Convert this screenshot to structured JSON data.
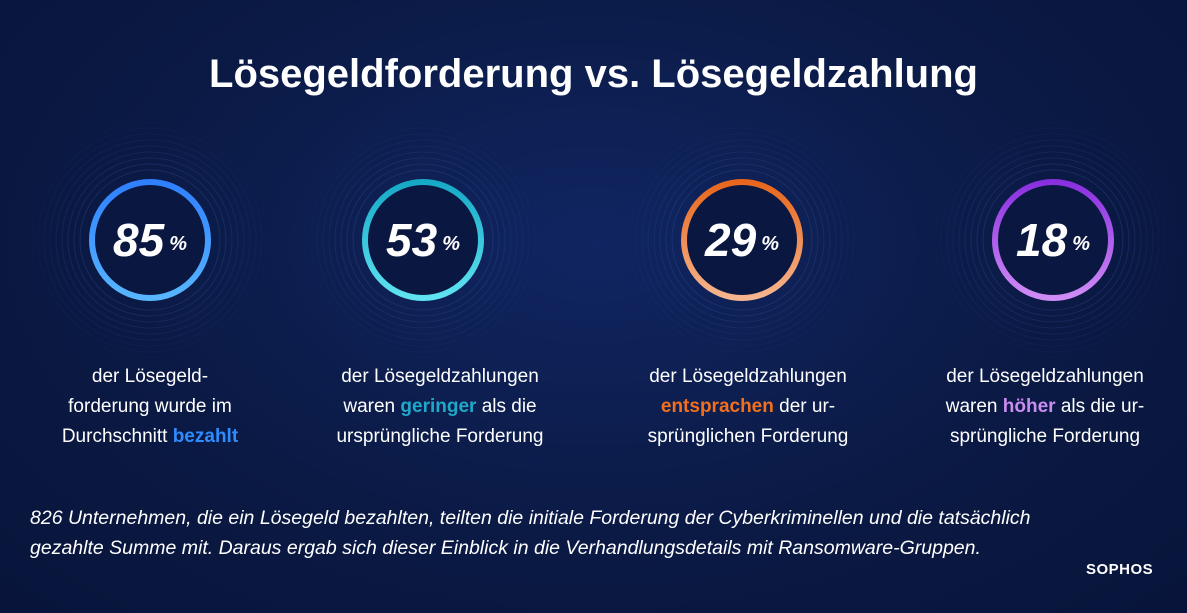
{
  "title": "Lösegeldforderung vs. Lösegeldzahlung",
  "stats": [
    {
      "value": "85",
      "unit": "%",
      "fraction": 0.85,
      "ring_colors": [
        "#2f7fff",
        "#57b6ff"
      ],
      "highlight_color": "#2f8cff",
      "caption_lines": [
        {
          "pre": "der Lösegeld-",
          "hl": "",
          "post": ""
        },
        {
          "pre": "forderung wurde im",
          "hl": "",
          "post": ""
        },
        {
          "pre": "Durchschnitt ",
          "hl": "bezahlt",
          "post": ""
        }
      ]
    },
    {
      "value": "53",
      "unit": "%",
      "fraction": 0.53,
      "ring_colors": [
        "#16a9c6",
        "#5fe3f2"
      ],
      "highlight_color": "#1fa8c9",
      "caption_lines": [
        {
          "pre": "der Lösegeldzahlungen",
          "hl": "",
          "post": ""
        },
        {
          "pre": "waren ",
          "hl": "geringer",
          "post": " als die"
        },
        {
          "pre": "ursprüngliche Forderung",
          "hl": "",
          "post": ""
        }
      ]
    },
    {
      "value": "29",
      "unit": "%",
      "fraction": 0.29,
      "ring_colors": [
        "#e8661c",
        "#f5b58e"
      ],
      "highlight_color": "#f0701f",
      "caption_lines": [
        {
          "pre": "der Lösegeldzahlungen",
          "hl": "",
          "post": ""
        },
        {
          "pre": "",
          "hl": "entsprachen",
          "post": " der ur-"
        },
        {
          "pre": "sprünglichen  Forderung",
          "hl": "",
          "post": ""
        }
      ]
    },
    {
      "value": "18",
      "unit": "%",
      "fraction": 0.18,
      "ring_colors": [
        "#8a2fe0",
        "#cf8cf5"
      ],
      "highlight_color": "#c98cf0",
      "caption_lines": [
        {
          "pre": "der Lösegeldzahlungen",
          "hl": "",
          "post": ""
        },
        {
          "pre": "waren ",
          "hl": "höher",
          "post": " als die ur-"
        },
        {
          "pre": "sprüngliche  Forderung",
          "hl": "",
          "post": ""
        }
      ]
    }
  ],
  "footnote_lines": [
    "826 Unternehmen, die ein Lösegeld bezahlten, teilten die initiale Forderung der Cyberkriminellen und die tatsächlich",
    "gezahlte Summe mit. Daraus ergab sich dieser Einblick in die Verhandlungsdetails mit Ransomware-Gruppen."
  ],
  "brand": "SOPHOS"
}
